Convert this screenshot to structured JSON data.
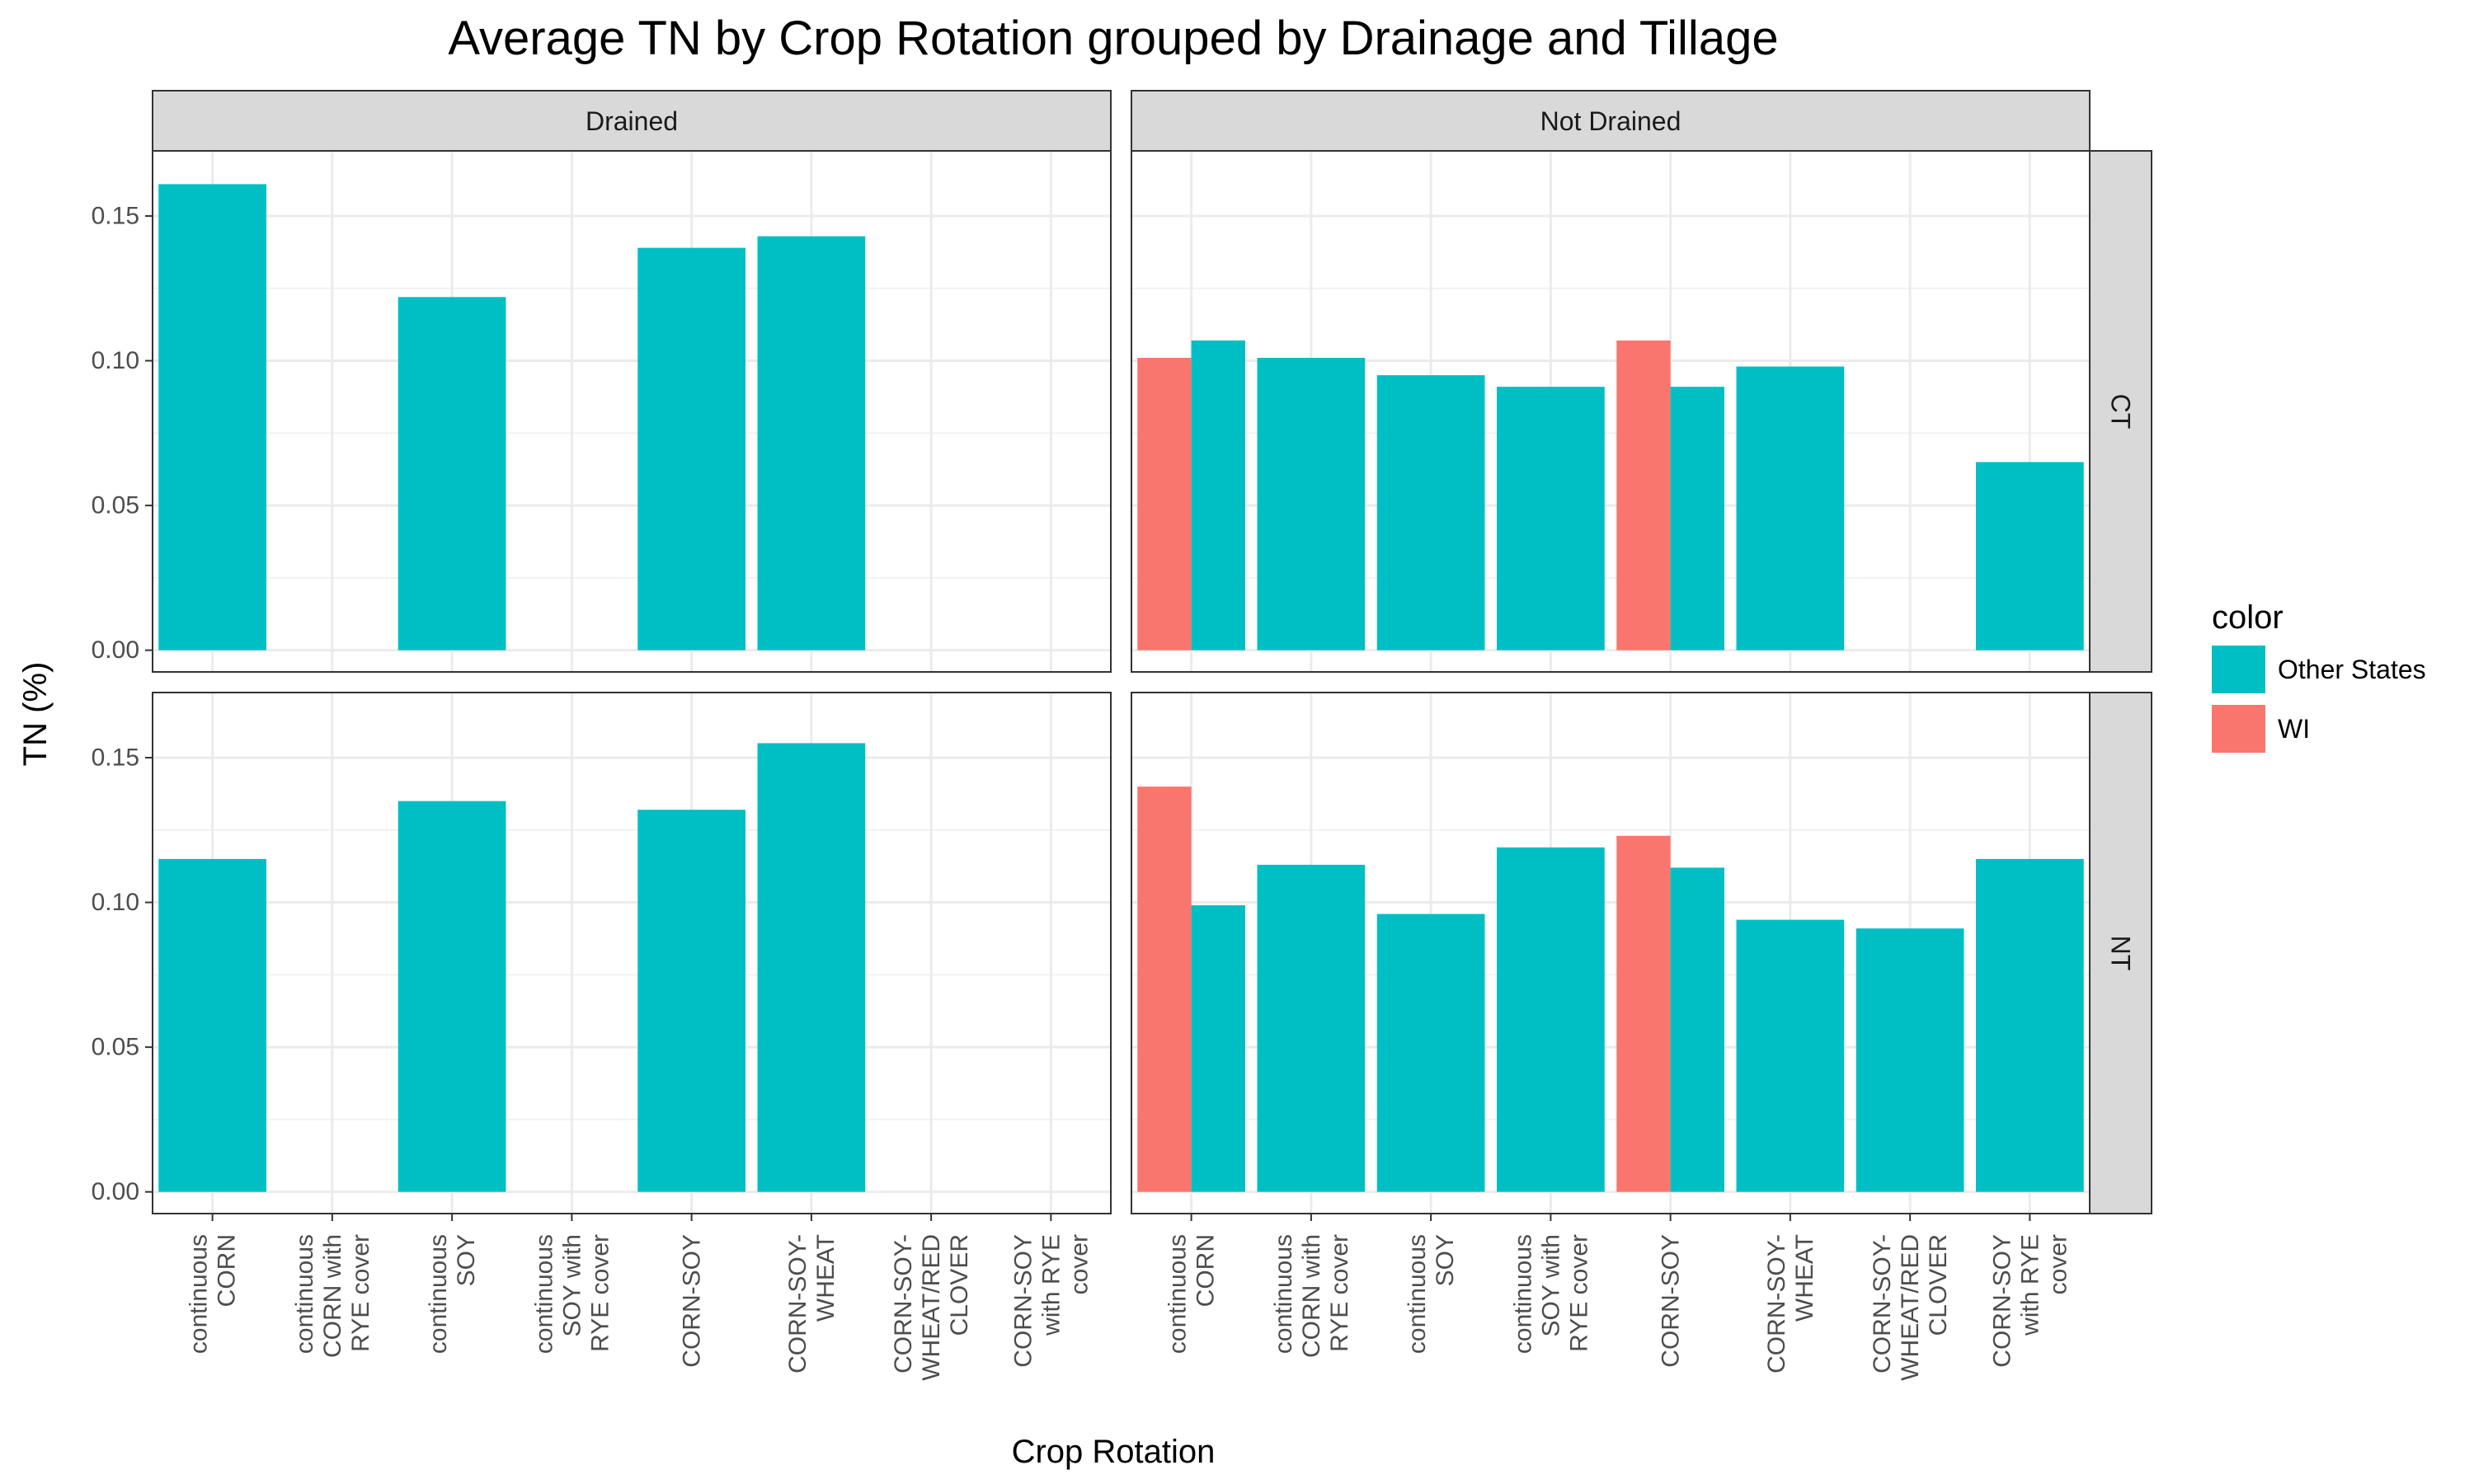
{
  "chart_data": {
    "type": "bar",
    "title": "Average TN by Crop Rotation grouped by Drainage and Tillage",
    "xlabel": "Crop Rotation",
    "ylabel": "TN (%)",
    "ylim": [
      -0.0075,
      0.1725
    ],
    "yticks": [
      "0.00",
      "0.05",
      "0.10",
      "0.15"
    ],
    "ytick_values": [
      0,
      0.05,
      0.1,
      0.15
    ],
    "grid": true,
    "categories": [
      "continuous CORN",
      "continuous CORN with RYE cover",
      "continuous SOY",
      "continuous SOY with RYE cover",
      "CORN-SOY",
      "CORN-SOY-WHEAT",
      "CORN-SOY-WHEAT/RED CLOVER",
      "CORN-SOY with RYE cover"
    ],
    "category_tick_lines": [
      [
        "continuous",
        "CORN"
      ],
      [
        "continuous",
        "CORN with",
        "RYE cover"
      ],
      [
        "continuous",
        "SOY"
      ],
      [
        "continuous",
        "SOY with",
        "RYE cover"
      ],
      [
        "CORN-SOY"
      ],
      [
        "CORN-SOY-",
        "WHEAT"
      ],
      [
        "CORN-SOY-",
        "WHEAT/RED",
        "CLOVER"
      ],
      [
        "CORN-SOY",
        "with RYE",
        "cover"
      ]
    ],
    "col_facets": [
      "Drained",
      "Not Drained"
    ],
    "row_facets": [
      "CT",
      "NT"
    ],
    "legend": {
      "title": "color",
      "position": "right",
      "entries": [
        {
          "label": "Other States",
          "color": "#00BFC4"
        },
        {
          "label": "WI",
          "color": "#F8766D"
        }
      ]
    },
    "panels": [
      {
        "drainage": "Drained",
        "tillage": "CT",
        "series": [
          {
            "name": "Other States",
            "values": [
              0.161,
              null,
              0.122,
              null,
              0.139,
              0.143,
              null,
              null
            ]
          },
          {
            "name": "WI",
            "values": [
              null,
              null,
              null,
              null,
              null,
              null,
              null,
              null
            ]
          }
        ]
      },
      {
        "drainage": "Not Drained",
        "tillage": "CT",
        "series": [
          {
            "name": "Other States",
            "values": [
              0.107,
              0.101,
              0.095,
              0.091,
              0.091,
              0.098,
              null,
              0.065
            ]
          },
          {
            "name": "WI",
            "values": [
              0.101,
              null,
              null,
              null,
              0.107,
              null,
              null,
              null
            ]
          }
        ]
      },
      {
        "drainage": "Drained",
        "tillage": "NT",
        "series": [
          {
            "name": "Other States",
            "values": [
              0.115,
              null,
              0.135,
              null,
              0.132,
              0.155,
              null,
              null
            ]
          },
          {
            "name": "WI",
            "values": [
              null,
              null,
              null,
              null,
              null,
              null,
              null,
              null
            ]
          }
        ]
      },
      {
        "drainage": "Not Drained",
        "tillage": "NT",
        "series": [
          {
            "name": "Other States",
            "values": [
              0.099,
              0.113,
              0.096,
              0.119,
              0.112,
              0.094,
              0.091,
              0.115
            ]
          },
          {
            "name": "WI",
            "values": [
              0.14,
              null,
              null,
              null,
              0.123,
              null,
              null,
              null
            ]
          }
        ]
      }
    ]
  }
}
